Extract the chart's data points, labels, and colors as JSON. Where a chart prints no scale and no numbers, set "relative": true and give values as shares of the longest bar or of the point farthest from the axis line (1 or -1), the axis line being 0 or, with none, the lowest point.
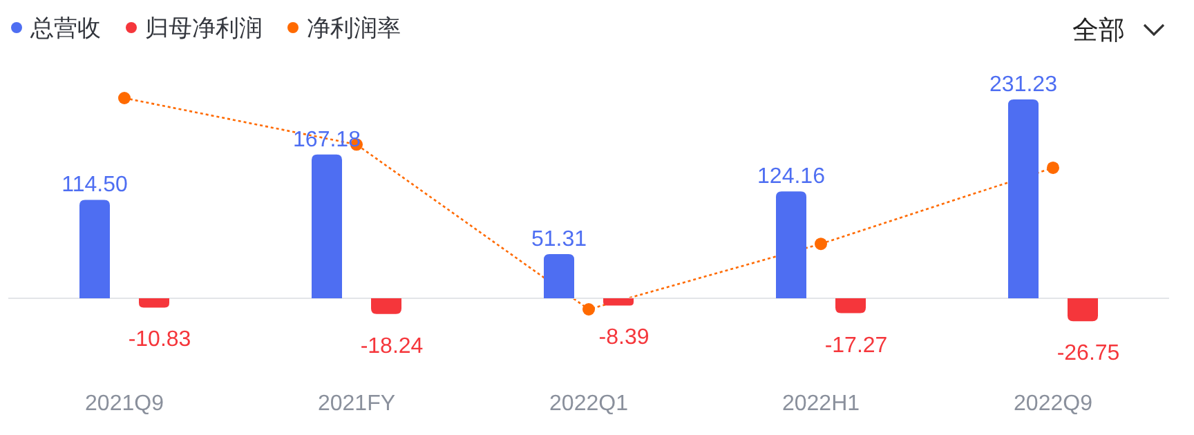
{
  "chart_data": [
    {
      "type": "bar",
      "categories": [
        "2021Q9",
        "2021FY",
        "2022Q1",
        "2022H1",
        "2022Q9"
      ],
      "series": [
        {
          "name": "总营收",
          "color": "#4e6ef2",
          "values": [
            114.5,
            167.18,
            51.31,
            124.16,
            231.23
          ],
          "value_labels": [
            "114.50",
            "167.18",
            "51.31",
            "124.16",
            "231.23"
          ]
        },
        {
          "name": "归母净利润",
          "color": "#f5363b",
          "values": [
            -10.83,
            -18.24,
            -8.39,
            -17.27,
            -26.75
          ],
          "value_labels": [
            "-10.83",
            "-18.24",
            "-8.39",
            "-17.27",
            "-26.75"
          ]
        }
      ],
      "legend": "top left",
      "annotations": [
        "全部"
      ]
    },
    {
      "type": "line",
      "relative": true,
      "categories": [
        null,
        null,
        null,
        null,
        null
      ],
      "series": [
        {
          "name": "净利润率",
          "color": "#ff6a00",
          "values": [
            1,
            0.78,
            0,
            0.31,
            0.67
          ]
        }
      ],
      "marker": "circle",
      "line_style": "dotted",
      "legend": "top left"
    }
  ]
}
